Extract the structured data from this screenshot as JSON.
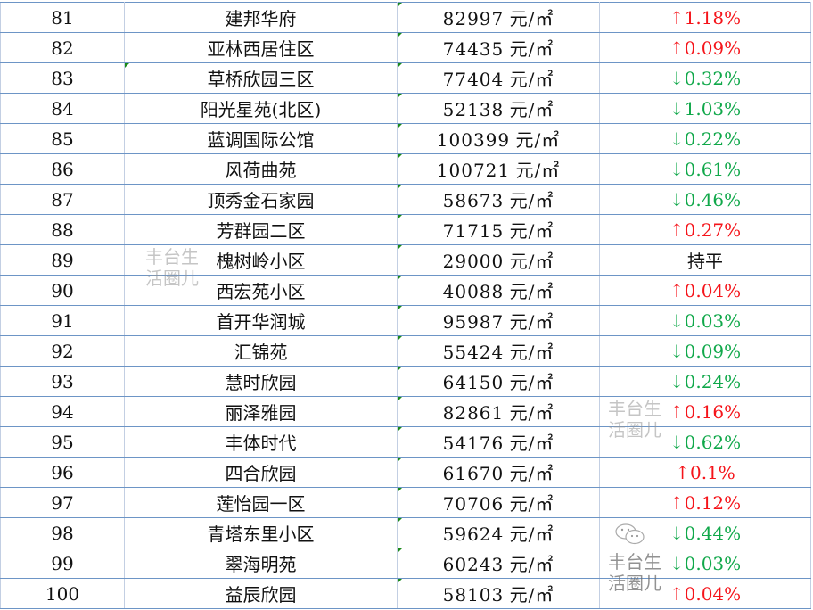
{
  "rows": [
    {
      "no": "81",
      "name": "建邦华府",
      "price": "82997",
      "unit": "元/㎡",
      "dir": "up",
      "change": "1.18%"
    },
    {
      "no": "82",
      "name": "亚林西居住区",
      "price": "74435",
      "unit": "元/㎡",
      "dir": "up",
      "change": "0.09%"
    },
    {
      "no": "83",
      "name": "草桥欣园三区",
      "price": "77404",
      "unit": "元/㎡",
      "dir": "down",
      "change": "0.32%"
    },
    {
      "no": "84",
      "name": "阳光星苑(北区)",
      "price": "52138",
      "unit": "元/㎡",
      "dir": "down",
      "change": "1.03%"
    },
    {
      "no": "85",
      "name": "蓝调国际公馆",
      "price": "100399",
      "unit": "元/㎡",
      "dir": "down",
      "change": "0.22%"
    },
    {
      "no": "86",
      "name": "风荷曲苑",
      "price": "100721",
      "unit": "元/㎡",
      "dir": "down",
      "change": "0.61%"
    },
    {
      "no": "87",
      "name": "顶秀金石家园",
      "price": "58673",
      "unit": "元/㎡",
      "dir": "down",
      "change": "0.46%"
    },
    {
      "no": "88",
      "name": "芳群园二区",
      "price": "71715",
      "unit": "元/㎡",
      "dir": "up",
      "change": "0.27%"
    },
    {
      "no": "89",
      "name": "槐树岭小区",
      "price": "29000",
      "unit": "元/㎡",
      "dir": "flat",
      "change": "持平"
    },
    {
      "no": "90",
      "name": "西宏苑小区",
      "price": "40088",
      "unit": "元/㎡",
      "dir": "up",
      "change": "0.04%"
    },
    {
      "no": "91",
      "name": "首开华润城",
      "price": "95987",
      "unit": "元/㎡",
      "dir": "down",
      "change": "0.03%"
    },
    {
      "no": "92",
      "name": "汇锦苑",
      "price": "55424",
      "unit": "元/㎡",
      "dir": "down",
      "change": "0.09%"
    },
    {
      "no": "93",
      "name": "慧时欣园",
      "price": "64150",
      "unit": "元/㎡",
      "dir": "down",
      "change": "0.24%"
    },
    {
      "no": "94",
      "name": "丽泽雅园",
      "price": "82861",
      "unit": "元/㎡",
      "dir": "up",
      "change": "0.16%"
    },
    {
      "no": "95",
      "name": "丰体时代",
      "price": "54176",
      "unit": "元/㎡",
      "dir": "down",
      "change": "0.62%"
    },
    {
      "no": "96",
      "name": "四合欣园",
      "price": "61670",
      "unit": "元/㎡",
      "dir": "up",
      "change": "0.1%"
    },
    {
      "no": "97",
      "name": "莲怡园一区",
      "price": "70706",
      "unit": "元/㎡",
      "dir": "up",
      "change": "0.12%"
    },
    {
      "no": "98",
      "name": "青塔东里小区",
      "price": "59624",
      "unit": "元/㎡",
      "dir": "down",
      "change": "0.44%"
    },
    {
      "no": "99",
      "name": "翠海明苑",
      "price": "60243",
      "unit": "元/㎡",
      "dir": "down",
      "change": "0.03%"
    },
    {
      "no": "100",
      "name": "益辰欣园",
      "price": "58103",
      "unit": "元/㎡",
      "dir": "up",
      "change": "0.04%"
    }
  ],
  "arrows": {
    "up": "↑",
    "down": "↓",
    "flat": ""
  },
  "colors": {
    "up": "#f5141a",
    "down": "#10a84a",
    "grid": "#6d95c6"
  },
  "watermark": "丰台生活圈儿"
}
